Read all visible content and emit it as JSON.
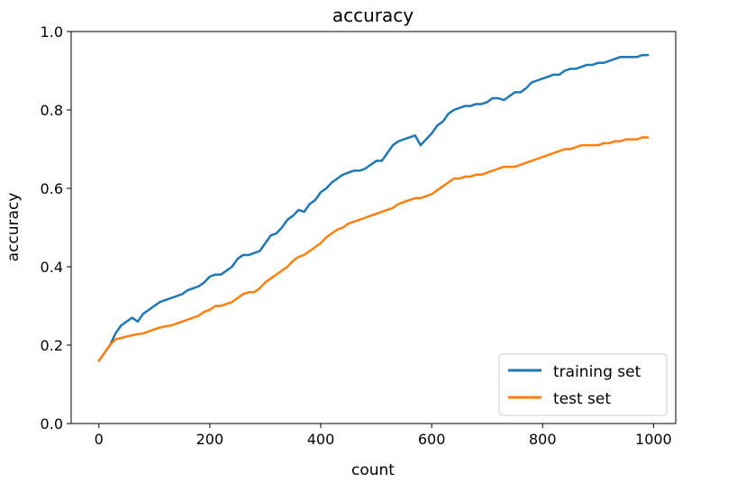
{
  "chart_data": {
    "type": "line",
    "title": "accuracy",
    "xlabel": "count",
    "ylabel": "accuracy",
    "xlim": [
      -50,
      1040
    ],
    "ylim": [
      0,
      1.0
    ],
    "xticks": [
      0,
      200,
      400,
      600,
      800,
      1000
    ],
    "yticks": [
      0.0,
      0.2,
      0.4,
      0.6,
      0.8,
      1.0
    ],
    "xtick_labels": [
      "0",
      "200",
      "400",
      "600",
      "800",
      "1000"
    ],
    "ytick_labels": [
      "0.0",
      "0.2",
      "0.4",
      "0.6",
      "0.8",
      "1.0"
    ],
    "grid": false,
    "legend": "lower-right",
    "x": [
      0,
      10,
      20,
      30,
      40,
      50,
      60,
      70,
      80,
      90,
      100,
      110,
      120,
      130,
      140,
      150,
      160,
      170,
      180,
      190,
      200,
      210,
      220,
      230,
      240,
      250,
      260,
      270,
      280,
      290,
      300,
      310,
      320,
      330,
      340,
      350,
      360,
      370,
      380,
      390,
      400,
      410,
      420,
      430,
      440,
      450,
      460,
      470,
      480,
      490,
      500,
      510,
      520,
      530,
      540,
      550,
      560,
      570,
      580,
      590,
      600,
      610,
      620,
      630,
      640,
      650,
      660,
      670,
      680,
      690,
      700,
      710,
      720,
      730,
      740,
      750,
      760,
      770,
      780,
      790,
      800,
      810,
      820,
      830,
      840,
      850,
      860,
      870,
      880,
      890,
      900,
      910,
      920,
      930,
      940,
      950,
      960,
      970,
      980,
      990
    ],
    "series": [
      {
        "name": "training set",
        "color": "#1f77b4",
        "values": [
          0.16,
          0.18,
          0.2,
          0.23,
          0.25,
          0.26,
          0.27,
          0.26,
          0.28,
          0.29,
          0.3,
          0.31,
          0.315,
          0.32,
          0.325,
          0.33,
          0.34,
          0.345,
          0.35,
          0.36,
          0.375,
          0.38,
          0.38,
          0.39,
          0.4,
          0.42,
          0.43,
          0.43,
          0.435,
          0.44,
          0.46,
          0.48,
          0.485,
          0.5,
          0.52,
          0.53,
          0.545,
          0.54,
          0.56,
          0.57,
          0.59,
          0.6,
          0.615,
          0.625,
          0.635,
          0.64,
          0.645,
          0.645,
          0.65,
          0.66,
          0.67,
          0.67,
          0.69,
          0.71,
          0.72,
          0.725,
          0.73,
          0.735,
          0.71,
          0.725,
          0.74,
          0.76,
          0.77,
          0.79,
          0.8,
          0.805,
          0.81,
          0.81,
          0.815,
          0.815,
          0.82,
          0.83,
          0.83,
          0.825,
          0.835,
          0.845,
          0.845,
          0.855,
          0.87,
          0.875,
          0.88,
          0.885,
          0.89,
          0.89,
          0.9,
          0.905,
          0.905,
          0.91,
          0.915,
          0.915,
          0.92,
          0.92,
          0.925,
          0.93,
          0.935,
          0.935,
          0.935,
          0.935,
          0.94,
          0.94
        ]
      },
      {
        "name": "test set",
        "color": "#ff7f0e",
        "values": [
          0.16,
          0.18,
          0.2,
          0.215,
          0.218,
          0.222,
          0.225,
          0.228,
          0.23,
          0.235,
          0.24,
          0.245,
          0.248,
          0.25,
          0.255,
          0.26,
          0.265,
          0.27,
          0.275,
          0.285,
          0.29,
          0.3,
          0.3,
          0.305,
          0.31,
          0.32,
          0.33,
          0.335,
          0.335,
          0.345,
          0.36,
          0.37,
          0.38,
          0.39,
          0.4,
          0.415,
          0.425,
          0.43,
          0.44,
          0.45,
          0.46,
          0.475,
          0.485,
          0.495,
          0.5,
          0.51,
          0.515,
          0.52,
          0.525,
          0.53,
          0.535,
          0.54,
          0.545,
          0.55,
          0.56,
          0.565,
          0.57,
          0.575,
          0.575,
          0.58,
          0.585,
          0.595,
          0.605,
          0.615,
          0.625,
          0.625,
          0.63,
          0.63,
          0.635,
          0.635,
          0.64,
          0.645,
          0.65,
          0.655,
          0.655,
          0.655,
          0.66,
          0.665,
          0.67,
          0.675,
          0.68,
          0.685,
          0.69,
          0.695,
          0.7,
          0.7,
          0.705,
          0.71,
          0.71,
          0.71,
          0.71,
          0.715,
          0.715,
          0.72,
          0.72,
          0.725,
          0.725,
          0.725,
          0.73,
          0.73
        ]
      }
    ]
  }
}
